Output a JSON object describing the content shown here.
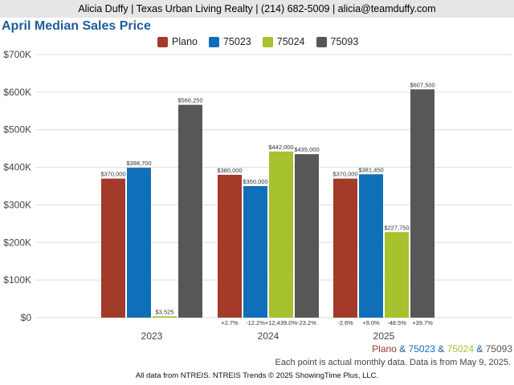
{
  "header": {
    "contact": "Alicia Duffy | Texas Urban Living Realty | (214) 682-5009 | alicia@teamduffy.com"
  },
  "chart_data": {
    "type": "bar",
    "title": "April Median Sales Price",
    "categories": [
      "2023",
      "2024",
      "2025"
    ],
    "ylim": [
      0,
      700000
    ],
    "yticks": [
      0,
      100000,
      200000,
      300000,
      400000,
      500000,
      600000,
      700000
    ],
    "ytick_labels": [
      "$0",
      "$100K",
      "$200K",
      "$300K",
      "$400K",
      "$500K",
      "$600K",
      "$700K"
    ],
    "grid": true,
    "legend_position": "top-center",
    "series": [
      {
        "name": "Plano",
        "color": "#a33a2a",
        "values": [
          370000,
          380000,
          370000
        ],
        "labels": [
          "$370,000",
          "$380,000",
          "$370,000"
        ],
        "changes": [
          "",
          "+2.7%",
          "-2.6%"
        ]
      },
      {
        "name": "75023",
        "color": "#0f6fb8",
        "values": [
          398700,
          350000,
          381450
        ],
        "labels": [
          "$398,700",
          "$350,000",
          "$381,450"
        ],
        "changes": [
          "",
          "-12.2%",
          "+9.0%"
        ]
      },
      {
        "name": "75024",
        "color": "#a6c22e",
        "values": [
          3525,
          442000,
          227750
        ],
        "labels": [
          "$3,525",
          "$442,000",
          "$227,750"
        ],
        "changes": [
          "",
          "+12,439.0%",
          "-48.5%"
        ]
      },
      {
        "name": "75093",
        "color": "#575757",
        "values": [
          566250,
          435000,
          607500
        ],
        "labels": [
          "$566,250",
          "$435,000",
          "$607,500"
        ],
        "changes": [
          "",
          "-23.2%",
          "+39.7%"
        ]
      }
    ]
  },
  "footer": {
    "series_names": [
      "Plano",
      "75023",
      "75024",
      "75093"
    ],
    "separator": " & ",
    "note": "Each point is actual monthly data. Data is from May 9, 2025.",
    "source": "All data from NTREIS. NTREIS Trends © 2025 ShowingTime Plus, LLC."
  }
}
